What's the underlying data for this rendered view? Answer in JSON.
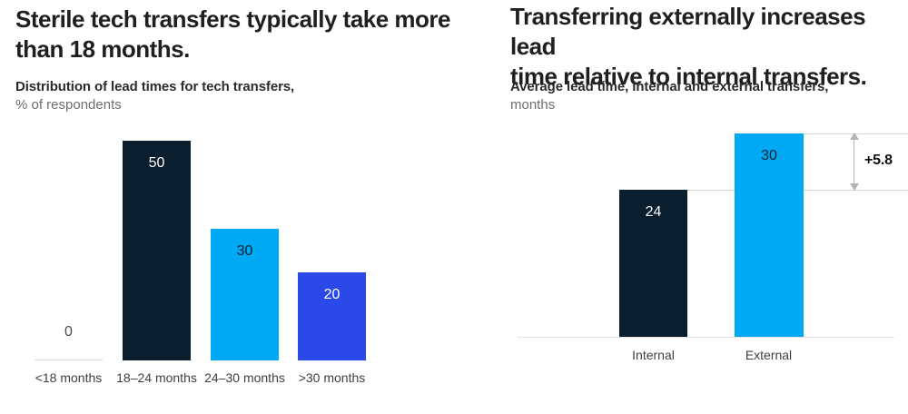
{
  "page": {
    "background": "#ffffff"
  },
  "colors": {
    "navy": "#0a1e2e",
    "cyan": "#00a9f4",
    "royal_blue": "#2a49e8",
    "title_text": "#1f1f1f",
    "muted_text": "#6e6e6e",
    "axis_text": "#3f3f3f",
    "grid_line": "#d4d4d4",
    "arrow_gray": "#b3b3b3"
  },
  "left_panel": {
    "title_lines": [
      "Sterile tech transfers typically take more",
      "than 18 months."
    ],
    "subtitle": "Distribution of lead times for tech transfers,",
    "unit": "% of respondents"
  },
  "right_panel": {
    "title_lines": [
      "Transferring externally increases lead",
      "time relative to internal transfers."
    ],
    "subtitle": "Average lead time, internal and external transfers,",
    "unit": "months",
    "annotation": "+5.8"
  },
  "chart_data": [
    {
      "type": "bar",
      "title": "Sterile tech transfers typically take more than 18 months.",
      "subtitle": "Distribution of lead times for tech transfers, % of respondents",
      "categories": [
        "<18 months",
        "18–24 months",
        "24–30 months",
        ">30 months"
      ],
      "values": [
        0,
        50,
        30,
        20
      ],
      "bar_colors": [
        "none",
        "#0a1e2e",
        "#00a9f4",
        "#2a49e8"
      ],
      "value_label_colors": [
        "#4a4a4a",
        "#ffffff",
        "#0a1e2e",
        "#ffffff"
      ],
      "xlabel": "",
      "ylabel": "% of respondents",
      "ylim": [
        0,
        55
      ],
      "grid": false,
      "legend": "none",
      "value_labels_shown": true
    },
    {
      "type": "bar",
      "title": "Transferring externally increases lead time relative to internal transfers.",
      "subtitle": "Average lead time, internal and external transfers, months",
      "categories": [
        "Internal",
        "External"
      ],
      "values": [
        24,
        30
      ],
      "bar_colors": [
        "#0a1e2e",
        "#00a9f4"
      ],
      "value_label_colors": [
        "#ffffff",
        "#0a1e2e"
      ],
      "xlabel": "",
      "ylabel": "months",
      "ylim": [
        0,
        32
      ],
      "grid": false,
      "legend": "none",
      "value_labels_shown": true,
      "annotation": {
        "label": "+5.8",
        "from_value": 24,
        "to_value": 30,
        "difference": 5.8
      }
    }
  ]
}
